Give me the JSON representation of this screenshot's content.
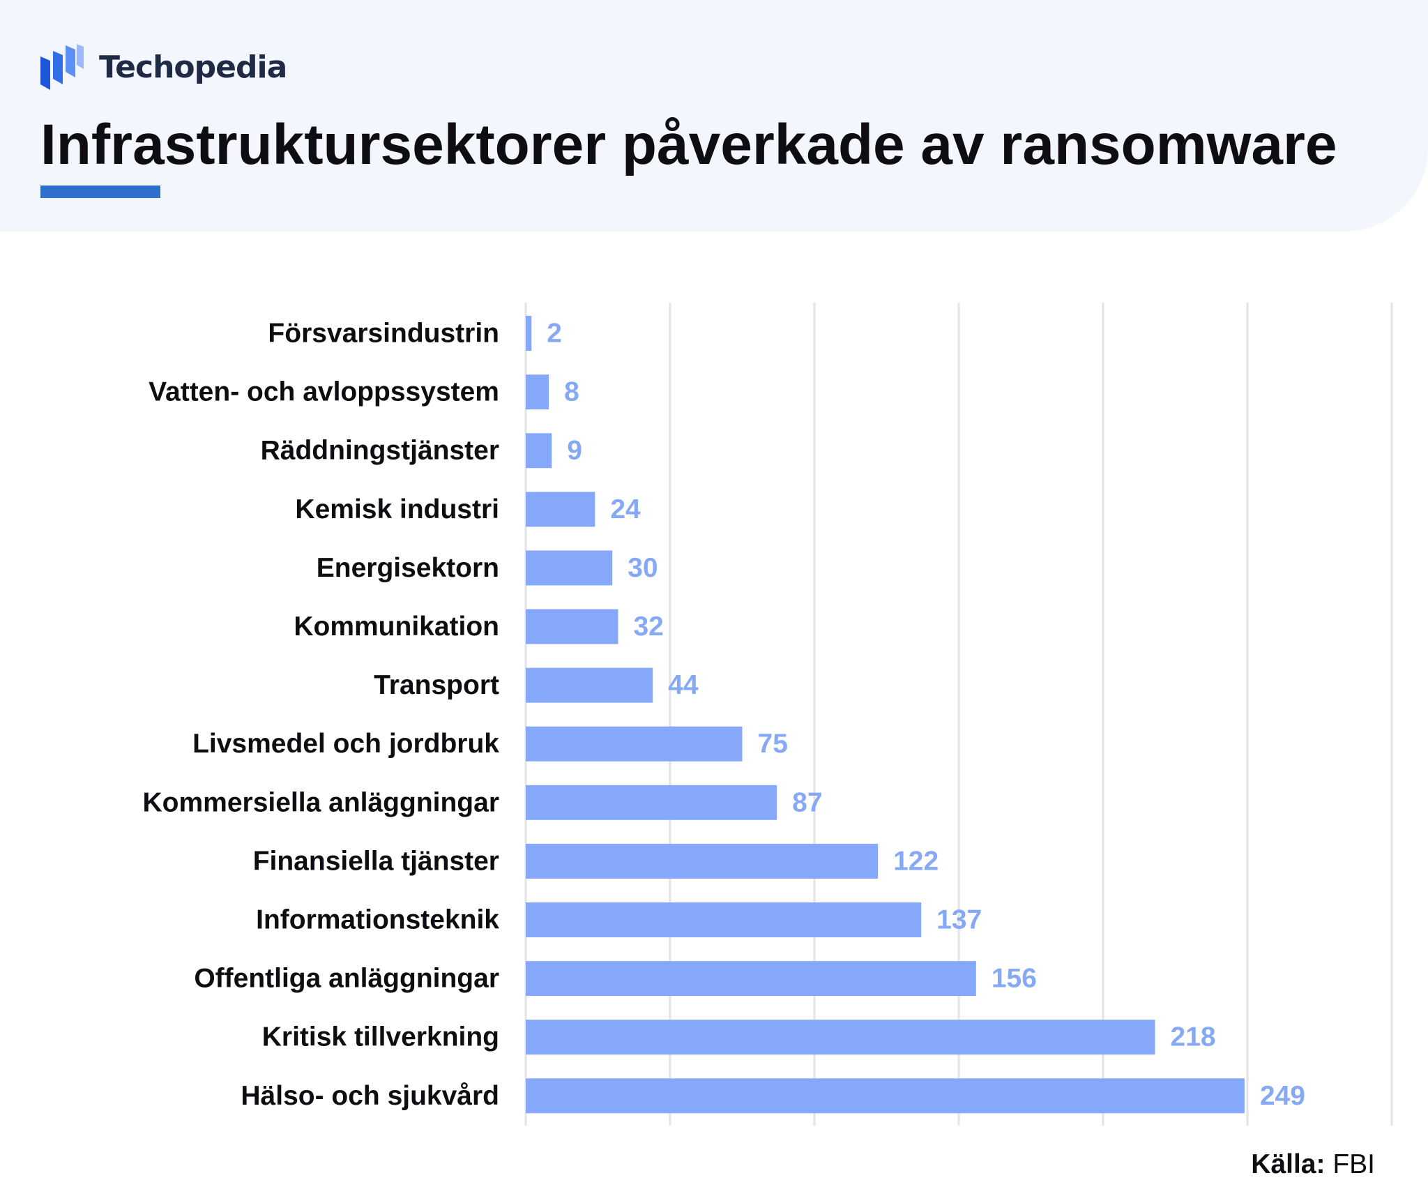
{
  "brand": {
    "name": "Techopedia",
    "logo_icon": "techopedia-logo-icon",
    "accent_color": "#2f6fcc"
  },
  "title": "Infrastruktursektorer påverkade av ransomware",
  "source": {
    "label": "Källa:",
    "value": "FBI"
  },
  "colors": {
    "bar": "#86a8fb",
    "value_label": "#86a9f5",
    "grid": "#e3e3e8",
    "header_background": "#f4f6fd"
  },
  "chart_data": {
    "type": "bar",
    "orientation": "horizontal",
    "title": "Infrastruktursektorer påverkade av ransomware",
    "xlabel": "",
    "ylabel": "",
    "xlim": [
      0,
      300
    ],
    "grid": true,
    "legend": "none",
    "categories": [
      "Försvarsindustrin",
      "Vatten- och avloppssystem",
      "Räddningstjänster",
      "Kemisk industri",
      "Energisektorn",
      "Kommunikation",
      "Transport",
      "Livsmedel och jordbruk",
      "Kommersiella anläggningar",
      "Finansiella tjänster",
      "Informationsteknik",
      "Offentliga anläggningar",
      "Kritisk tillverkning",
      "Hälso- och sjukvård"
    ],
    "values": [
      2,
      8,
      9,
      24,
      30,
      32,
      44,
      75,
      87,
      122,
      137,
      156,
      218,
      249
    ]
  }
}
